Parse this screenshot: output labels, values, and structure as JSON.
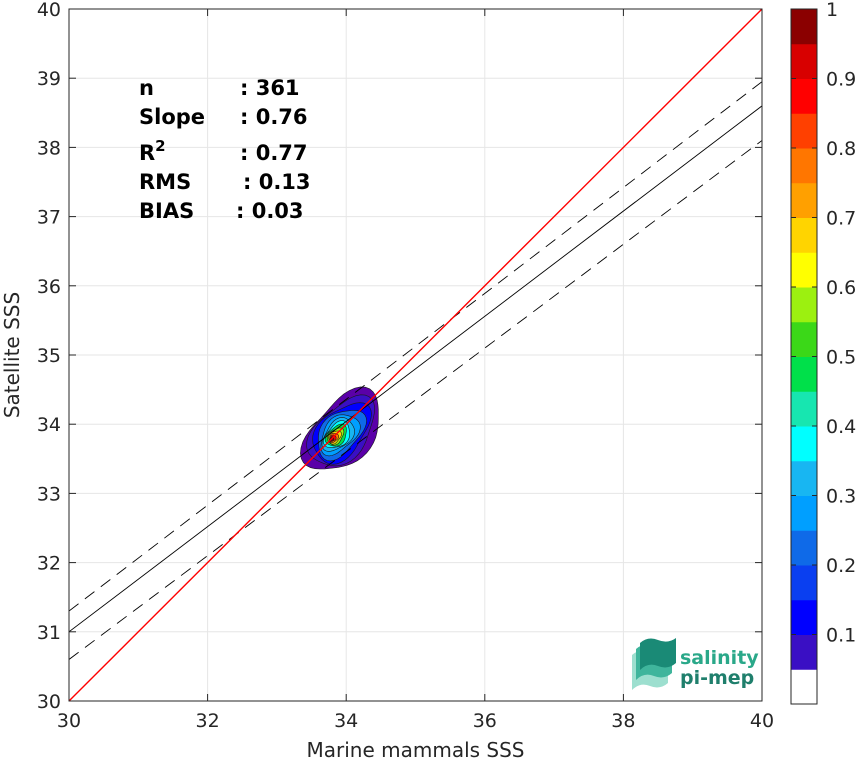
{
  "chart_data": {
    "type": "scatter",
    "xlabel": "Marine mammals SSS",
    "ylabel": "Satellite SSS",
    "xlim": [
      30,
      40
    ],
    "ylim": [
      30,
      40
    ],
    "x_ticks": [
      "30",
      "32",
      "34",
      "36",
      "38",
      "40"
    ],
    "y_ticks": [
      "30",
      "31",
      "32",
      "33",
      "34",
      "35",
      "36",
      "37",
      "38",
      "39",
      "40"
    ],
    "grid": true,
    "stats": [
      {
        "label": "n",
        "value": ": 361"
      },
      {
        "label": "Slope",
        "value": ": 0.76"
      },
      {
        "label": "R",
        "sup": "2",
        "value": ": 0.77"
      },
      {
        "label": "RMS",
        "value": ": 0.13"
      },
      {
        "label": "BIAS",
        "value": ": 0.03"
      }
    ],
    "identity_line": {
      "color": "#ff0000",
      "x": [
        30,
        40
      ],
      "y": [
        30,
        40
      ]
    },
    "regression_line": {
      "color": "#000000",
      "x": [
        30,
        40
      ],
      "y": [
        31.0,
        38.6
      ]
    },
    "confidence_lines": [
      {
        "x": [
          30,
          40
        ],
        "y": [
          31.3,
          38.95
        ]
      },
      {
        "x": [
          30,
          40
        ],
        "y": [
          30.6,
          38.1
        ]
      }
    ],
    "density_center": {
      "x": 33.78,
      "y": 33.78
    },
    "colorbar": {
      "ticks": [
        "0.1",
        "0.2",
        "0.3",
        "0.4",
        "0.5",
        "0.6",
        "0.7",
        "0.8",
        "0.9",
        "1"
      ],
      "levels": [
        0.05,
        0.1,
        0.15,
        0.2,
        0.25,
        0.3,
        0.35,
        0.4,
        0.45,
        0.5,
        0.55,
        0.6,
        0.65,
        0.7,
        0.75,
        0.8,
        0.85,
        0.9,
        0.95,
        1.0
      ],
      "colors": [
        "#5a00a8",
        "#3a0fc4",
        "#0000ff",
        "#0a3ff0",
        "#0f6ae8",
        "#009fff",
        "#18b6f2",
        "#00ffff",
        "#17e6b0",
        "#00e04a",
        "#3bd818",
        "#9cf010",
        "#ffff00",
        "#ffd400",
        "#ffa000",
        "#ff7600",
        "#ff4000",
        "#ff0000",
        "#d80000",
        "#8b0000"
      ]
    }
  },
  "logo": {
    "line1": "salinity",
    "line2": "pi-mep"
  }
}
